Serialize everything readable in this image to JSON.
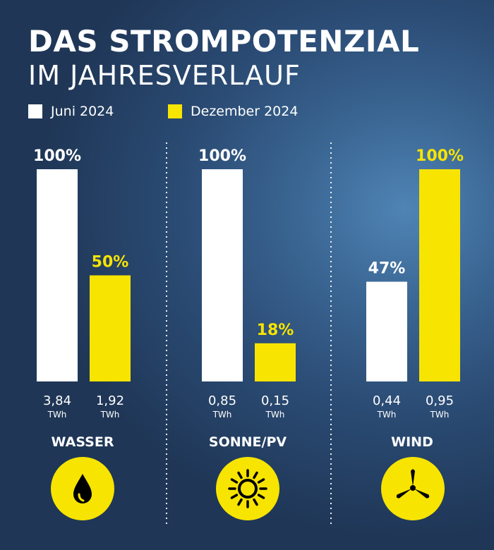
{
  "title_line1": "DAS STROMPOTENZIAL",
  "title_line2": "IM JAHRESVERLAUF",
  "legend": [
    {
      "label": "Juni 2024",
      "color": "#ffffff"
    },
    {
      "label": "Dezember 2024",
      "color": "#f7e400"
    }
  ],
  "icons": [
    "water-drop-icon",
    "sun-icon",
    "wind-turbine-icon"
  ],
  "chart_data": {
    "type": "bar",
    "categories": [
      "WASSER",
      "SONNE/PV",
      "WIND"
    ],
    "series": [
      {
        "name": "Juni 2024",
        "color": "#ffffff",
        "values": [
          100,
          100,
          47
        ],
        "value_labels": [
          "100%",
          "100%",
          "47%"
        ],
        "twh_labels": [
          "3,84",
          "0,85",
          "0,44"
        ]
      },
      {
        "name": "Dezember 2024",
        "color": "#f7e400",
        "values": [
          50,
          18,
          100
        ],
        "value_labels": [
          "50%",
          "18%",
          "100%"
        ],
        "twh_labels": [
          "1,92",
          "0,15",
          "0,95"
        ]
      }
    ],
    "unit": "TWh",
    "ylim": [
      0,
      100
    ],
    "grid": false
  }
}
